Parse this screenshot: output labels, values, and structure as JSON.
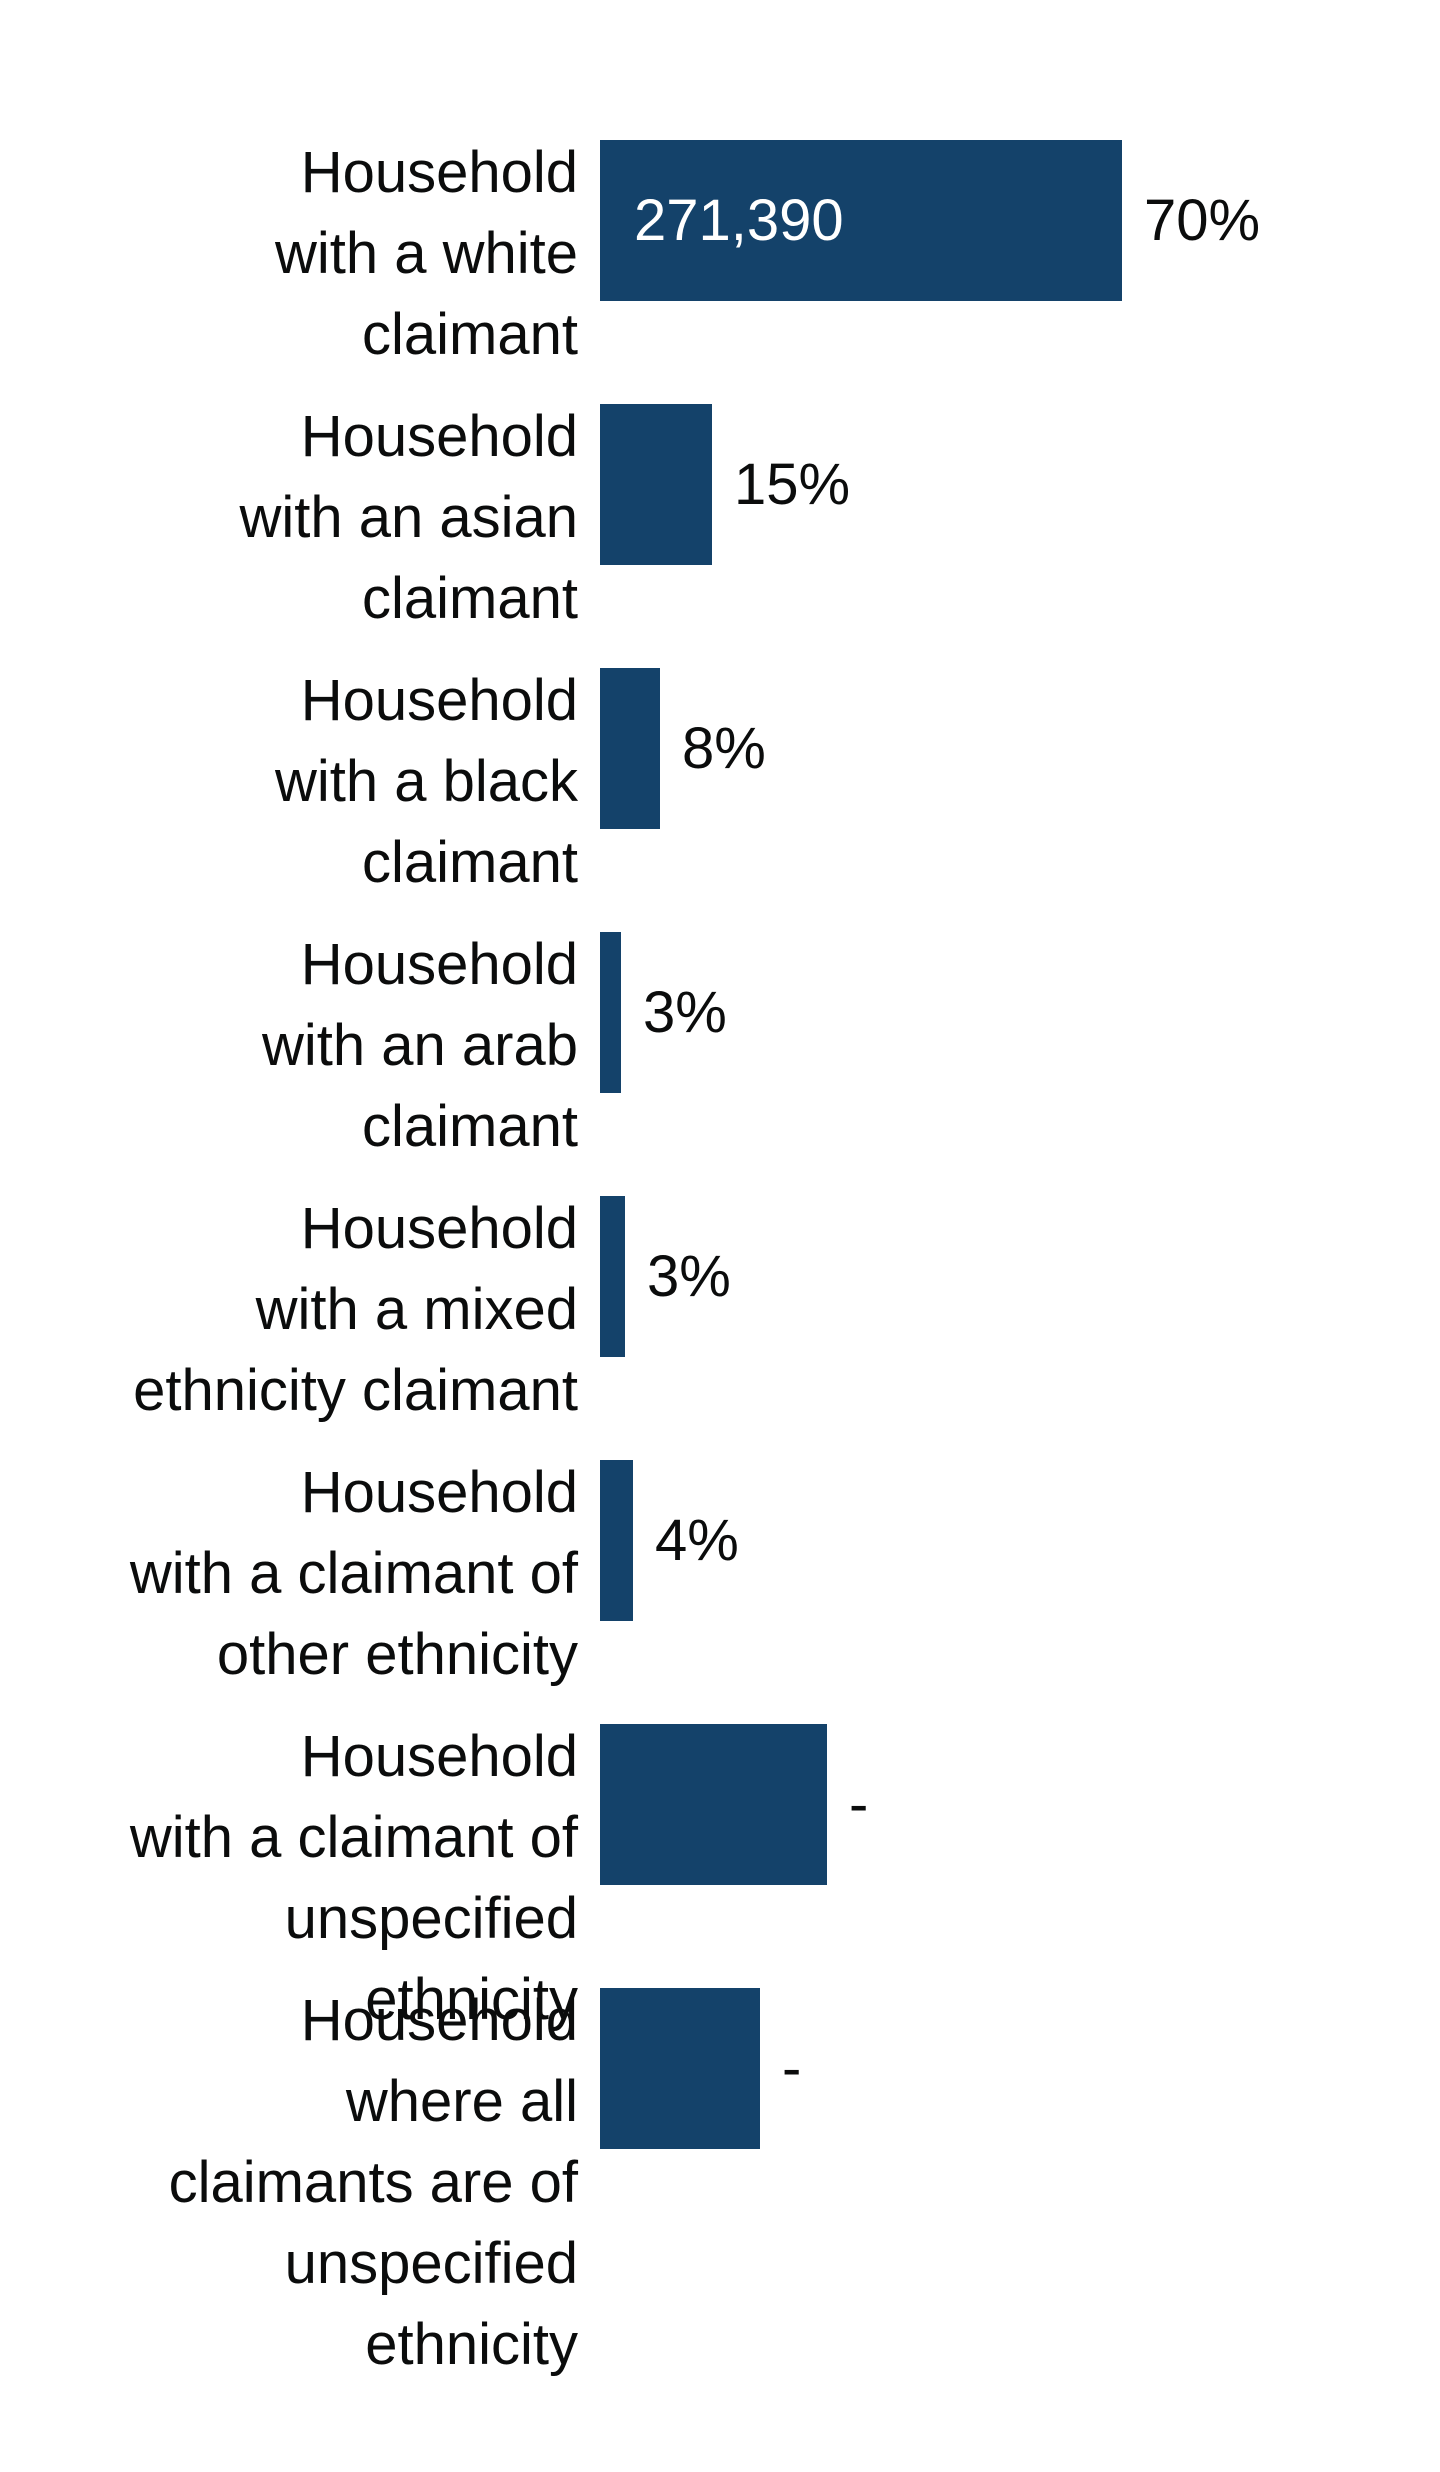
{
  "chart_data": {
    "type": "bar",
    "orientation": "horizontal",
    "title": "",
    "xlabel": "",
    "ylabel": "",
    "grid": false,
    "bar_color": "#14426a",
    "categories": [
      "Household\nwith a white\nclaimant",
      "Household\nwith an asian\nclaimant",
      "Household\nwith a black\nclaimant",
      "Household\nwith an arab\nclaimant",
      "Household\nwith a mixed\nethnicity claimant",
      "Household\nwith a claimant of\nother ethnicity",
      "Household\nwith a claimant of\nunspecified\nethnicity",
      "Household\nwhere all\nclaimants are of\nunspecified\nethnicity"
    ],
    "values": [
      271390,
      58000,
      31000,
      11000,
      13000,
      17000,
      118000,
      83000
    ],
    "value_labels": [
      "70%",
      "15%",
      "8%",
      "3%",
      "3%",
      "4%",
      "-",
      "-"
    ],
    "inner_labels": [
      "271,390",
      "",
      "",
      "",
      "",
      "",
      "",
      ""
    ],
    "xlim": [
      0,
      271390
    ]
  }
}
